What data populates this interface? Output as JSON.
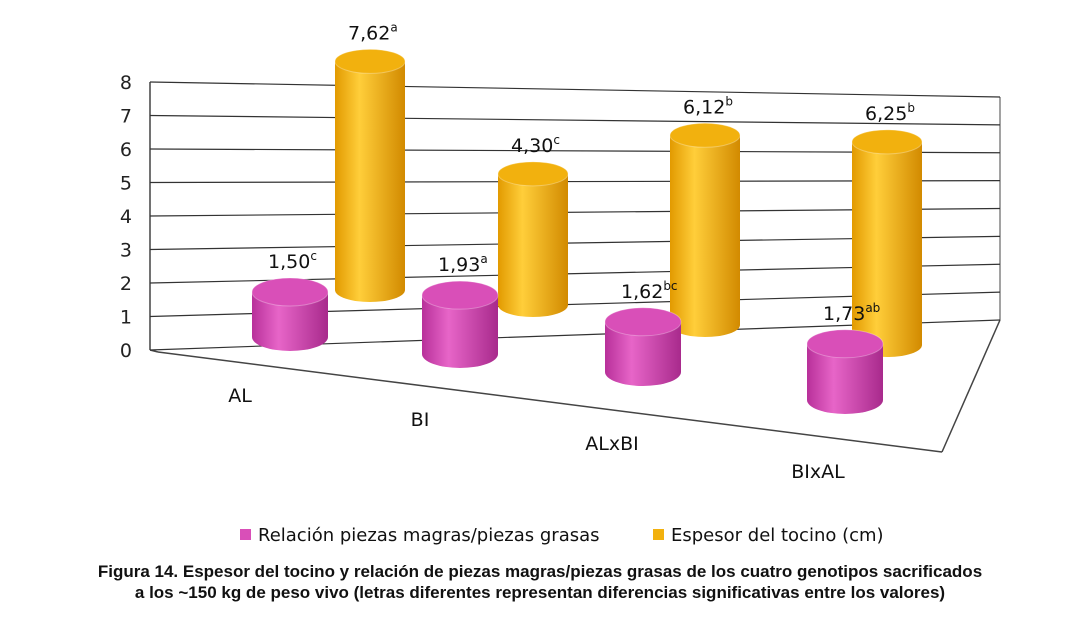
{
  "chart_data": {
    "type": "cylinder3d",
    "categories": [
      "AL",
      "BI",
      "ALxBI",
      "BIxAL"
    ],
    "series": [
      {
        "name": "Relación piezas magras/piezas grasas",
        "color": "#d94fb8",
        "values": [
          1.5,
          1.93,
          1.62,
          1.73
        ],
        "value_labels": [
          "1,50",
          "1,93",
          "1,62",
          "1,73"
        ],
        "significance": [
          "c",
          "a",
          "bc",
          "ab"
        ]
      },
      {
        "name": "Espesor del tocino (cm)",
        "color": "#f2b10e",
        "values": [
          7.62,
          4.3,
          6.12,
          6.25
        ],
        "value_labels": [
          "7,62",
          "4,30",
          "6,12",
          "6,25"
        ],
        "significance": [
          "a",
          "c",
          "b",
          "b"
        ]
      }
    ],
    "ylim": [
      0,
      8
    ],
    "yticks": [
      0,
      1,
      2,
      3,
      4,
      5,
      6,
      7,
      8
    ],
    "grid": true,
    "caption": [
      "Figura 14. Espesor del tocino y relación de piezas magras/piezas grasas de los cuatro genotipos sacrificados",
      "a los ~150 kg de peso vivo (letras diferentes representan diferencias significativas entre los valores)"
    ]
  }
}
